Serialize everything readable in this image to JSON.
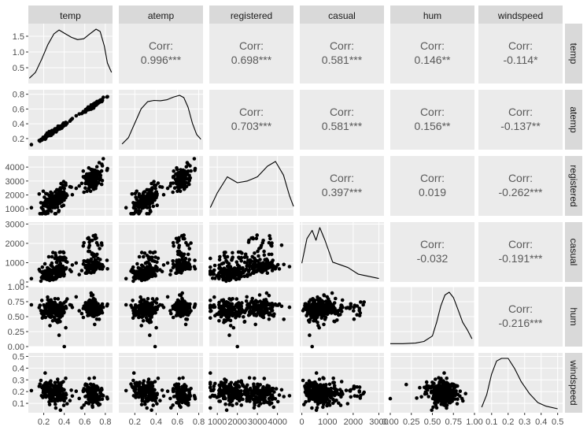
{
  "chart_data": {
    "type": "scatter",
    "variables": [
      "temp",
      "atemp",
      "registered",
      "casual",
      "hum",
      "windspeed"
    ],
    "corr_prefix": "Corr:",
    "correlations": [
      {
        "row": "atemp",
        "col": "temp",
        "value": "0.996***"
      },
      {
        "row": "registered",
        "col": "temp",
        "value": "0.698***"
      },
      {
        "row": "casual",
        "col": "temp",
        "value": "0.581***"
      },
      {
        "row": "hum",
        "col": "temp",
        "value": "0.146**"
      },
      {
        "row": "windspeed",
        "col": "temp",
        "value": "-0.114*"
      },
      {
        "row": "registered",
        "col": "atemp",
        "value": "0.703***"
      },
      {
        "row": "casual",
        "col": "atemp",
        "value": "0.581***"
      },
      {
        "row": "hum",
        "col": "atemp",
        "value": "0.156**"
      },
      {
        "row": "windspeed",
        "col": "atemp",
        "value": "-0.137**"
      },
      {
        "row": "casual",
        "col": "registered",
        "value": "0.397***"
      },
      {
        "row": "hum",
        "col": "registered",
        "value": "0.019"
      },
      {
        "row": "windspeed",
        "col": "registered",
        "value": "-0.262***"
      },
      {
        "row": "hum",
        "col": "casual",
        "value": "-0.032"
      },
      {
        "row": "windspeed",
        "col": "casual",
        "value": "-0.191***"
      },
      {
        "row": "windspeed",
        "col": "hum",
        "value": "-0.216***"
      }
    ],
    "x_axes": {
      "temp": {
        "range": [
          0.05,
          0.87
        ],
        "ticks": [
          0.2,
          0.4,
          0.6,
          0.8
        ],
        "labels": [
          "0.2",
          "0.4",
          "0.6",
          "0.8"
        ]
      },
      "atemp": {
        "range": [
          0.05,
          0.84
        ],
        "ticks": [
          0.2,
          0.4,
          0.6,
          0.8
        ],
        "labels": [
          "0.2",
          "0.4",
          "0.6",
          "0.8"
        ]
      },
      "registered": {
        "range": [
          600,
          4800
        ],
        "ticks": [
          1000,
          2000,
          3000,
          4000
        ],
        "labels": [
          "1000",
          "2000",
          "3000",
          "4000"
        ]
      },
      "casual": {
        "range": [
          -80,
          3200
        ],
        "ticks": [
          0,
          1000,
          2000,
          3000
        ],
        "labels": [
          "0",
          "1000",
          "2000",
          "3000"
        ]
      },
      "hum": {
        "range": [
          0.0,
          1.0
        ],
        "ticks": [
          0.0,
          0.25,
          0.5,
          0.75,
          1.0
        ],
        "labels": [
          "0.00",
          "0.25",
          "0.50",
          "0.75",
          "1.00"
        ]
      },
      "windspeed": {
        "range": [
          0.02,
          0.53
        ],
        "ticks": [
          0.1,
          0.2,
          0.3,
          0.4,
          0.5
        ],
        "labels": [
          "0.1",
          "0.2",
          "0.3",
          "0.4",
          "0.5"
        ]
      }
    },
    "y_axes": {
      "temp": {
        "range": [
          0,
          1.9
        ],
        "ticks": [
          0.5,
          1.0,
          1.5
        ],
        "labels": [
          "0.5",
          "1.0",
          "1.5"
        ]
      },
      "atemp": {
        "range": [
          0.05,
          0.86
        ],
        "ticks": [
          0.2,
          0.4,
          0.6,
          0.8
        ],
        "labels": [
          "0.2",
          "0.4",
          "0.6",
          "0.8"
        ]
      },
      "registered": {
        "range": [
          500,
          4800
        ],
        "ticks": [
          1000,
          2000,
          3000,
          4000
        ],
        "labels": [
          "1000",
          "2000",
          "3000",
          "4000"
        ]
      },
      "casual": {
        "range": [
          0,
          3100
        ],
        "ticks": [
          0,
          1000,
          2000,
          3000
        ],
        "labels": [
          "0",
          "1000",
          "2000",
          "3000"
        ]
      },
      "hum": {
        "range": [
          0.0,
          1.0
        ],
        "ticks": [
          0.0,
          0.25,
          0.5,
          0.75,
          1.0
        ],
        "labels": [
          "0.00",
          "0.25",
          "0.50",
          "0.75",
          "1.00"
        ]
      },
      "windspeed": {
        "range": [
          0.02,
          0.53
        ],
        "ticks": [
          0.1,
          0.2,
          0.3,
          0.4,
          0.5
        ],
        "labels": [
          "0.1",
          "0.2",
          "0.3",
          "0.4",
          "0.5"
        ]
      }
    },
    "densities": {
      "temp": [
        [
          0.06,
          0.1
        ],
        [
          0.12,
          0.3
        ],
        [
          0.18,
          0.75
        ],
        [
          0.24,
          1.25
        ],
        [
          0.3,
          1.62
        ],
        [
          0.35,
          1.75
        ],
        [
          0.41,
          1.62
        ],
        [
          0.47,
          1.5
        ],
        [
          0.53,
          1.42
        ],
        [
          0.59,
          1.45
        ],
        [
          0.65,
          1.62
        ],
        [
          0.71,
          1.78
        ],
        [
          0.75,
          1.7
        ],
        [
          0.79,
          1.2
        ],
        [
          0.82,
          0.62
        ],
        [
          0.86,
          0.3
        ]
      ],
      "atemp": [
        [
          0.08,
          0.1
        ],
        [
          0.14,
          0.3
        ],
        [
          0.2,
          0.75
        ],
        [
          0.26,
          1.2
        ],
        [
          0.32,
          1.42
        ],
        [
          0.38,
          1.46
        ],
        [
          0.44,
          1.45
        ],
        [
          0.5,
          1.48
        ],
        [
          0.56,
          1.56
        ],
        [
          0.62,
          1.62
        ],
        [
          0.66,
          1.55
        ],
        [
          0.7,
          1.25
        ],
        [
          0.74,
          0.75
        ],
        [
          0.78,
          0.4
        ],
        [
          0.82,
          0.25
        ]
      ],
      "registered": [
        [
          650,
          0.1
        ],
        [
          1000,
          0.35
        ],
        [
          1500,
          0.62
        ],
        [
          2000,
          0.52
        ],
        [
          2500,
          0.55
        ],
        [
          3000,
          0.62
        ],
        [
          3500,
          0.8
        ],
        [
          3900,
          0.88
        ],
        [
          4300,
          0.65
        ],
        [
          4600,
          0.3
        ],
        [
          4800,
          0.12
        ]
      ],
      "casual": [
        [
          0,
          0.3
        ],
        [
          200,
          0.75
        ],
        [
          400,
          0.9
        ],
        [
          550,
          0.72
        ],
        [
          700,
          0.95
        ],
        [
          900,
          0.72
        ],
        [
          1200,
          0.32
        ],
        [
          1500,
          0.27
        ],
        [
          1800,
          0.22
        ],
        [
          2200,
          0.1
        ],
        [
          2600,
          0.06
        ],
        [
          3000,
          0.02
        ]
      ],
      "hum": [
        [
          0.0,
          0.01
        ],
        [
          0.15,
          0.01
        ],
        [
          0.3,
          0.02
        ],
        [
          0.4,
          0.05
        ],
        [
          0.5,
          0.15
        ],
        [
          0.55,
          0.4
        ],
        [
          0.6,
          0.7
        ],
        [
          0.65,
          0.9
        ],
        [
          0.7,
          0.95
        ],
        [
          0.75,
          0.85
        ],
        [
          0.8,
          0.65
        ],
        [
          0.86,
          0.4
        ],
        [
          0.92,
          0.25
        ],
        [
          0.97,
          0.1
        ]
      ],
      "windspeed": [
        [
          0.04,
          0.06
        ],
        [
          0.07,
          0.3
        ],
        [
          0.1,
          0.7
        ],
        [
          0.13,
          0.95
        ],
        [
          0.16,
          1.0
        ],
        [
          0.2,
          1.0
        ],
        [
          0.24,
          0.8
        ],
        [
          0.28,
          0.55
        ],
        [
          0.33,
          0.32
        ],
        [
          0.38,
          0.15
        ],
        [
          0.43,
          0.08
        ],
        [
          0.5,
          0.03
        ]
      ]
    },
    "grid": true,
    "point_color": "#000000"
  }
}
